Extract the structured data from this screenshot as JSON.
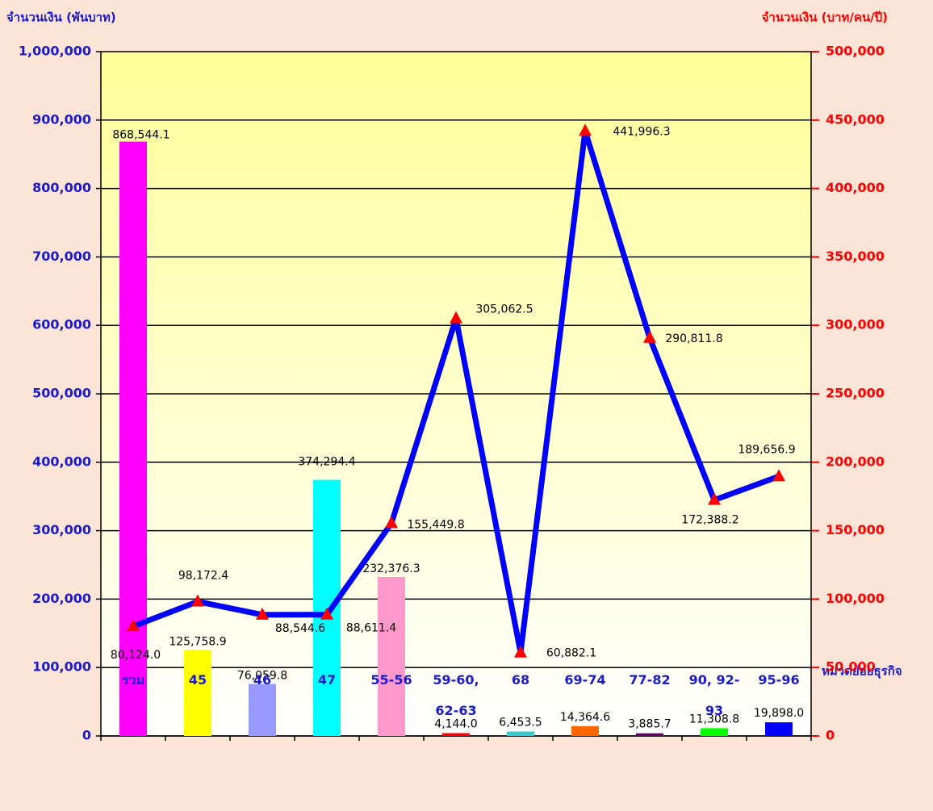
{
  "chart_data": {
    "type": "bar-line",
    "y_label": "จำนวนเงิน (พันบาท)",
    "y2_label": "จำนวนเงิน (บาท/คน/ปี)",
    "x_label": "หมวดย่อยธุรกิจ",
    "categories": [
      "รวม",
      "45",
      "46",
      "47",
      "55-56",
      "59-60, 62-63",
      "68",
      "69-74",
      "77-82",
      "90, 92-93",
      "95-96"
    ],
    "series": [
      {
        "type": "bar",
        "colors": [
          "#ff00ff",
          "#ffff00",
          "#9999ff",
          "#00ffff",
          "#ff99cc",
          "#ff0000",
          "#33cccc",
          "#ff6600",
          "#660066",
          "#00ff00",
          "#0000ff"
        ],
        "values": [
          868544.1,
          125758.9,
          76059.8,
          374294.4,
          232376.3,
          4144.0,
          6453.5,
          14364.6,
          3885.7,
          11308.8,
          19898.0
        ],
        "value_labels": [
          "868,544.1",
          "125,758.9",
          "76,059.8",
          "374,294.4",
          "232,376.3",
          "4,144.0",
          "6,453.5",
          "14,364.6",
          "3,885.7",
          "11,308.8",
          "19,898.0"
        ]
      },
      {
        "type": "line",
        "axis": "y2",
        "color": "#0000ff",
        "marker_color": "#ff0000",
        "values": [
          80124.0,
          98172.4,
          88544.6,
          88611.4,
          155449.8,
          305062.5,
          60882.1,
          441996.3,
          290811.8,
          172388.2,
          189656.9
        ],
        "value_labels": [
          "80,124.0",
          "98,172.4",
          "88,544.6",
          "88,611.4",
          "155,449.8",
          "305,062.5",
          "60,882.1",
          "441,996.3",
          "290,811.8",
          "172,388.2",
          "189,656.9"
        ]
      }
    ],
    "ylim": [
      0,
      1000000
    ],
    "yticks": [
      0,
      {
        "value": 100000,
        "label": "100,000"
      },
      {
        "value": 200000,
        "label": "200,000"
      },
      {
        "value": 300000,
        "label": "300,000"
      },
      {
        "value": 400000,
        "label": "400,000"
      },
      {
        "value": 500000,
        "label": "500,000"
      },
      {
        "value": 600000,
        "label": "600,000"
      },
      {
        "value": 700000,
        "label": "700,000"
      },
      {
        "value": 800000,
        "label": "800,000"
      },
      {
        "value": 900000,
        "label": "900,000"
      },
      {
        "value": 1000000,
        "label": "1,000,000"
      }
    ],
    "y2lim": [
      0,
      500000
    ],
    "y2ticks": [
      0,
      {
        "value": 50000,
        "label": "50,000"
      },
      {
        "value": 100000,
        "label": "100,000"
      },
      {
        "value": 150000,
        "label": "150,000"
      },
      {
        "value": 200000,
        "label": "200,000"
      },
      {
        "value": 250000,
        "label": "250,000"
      },
      {
        "value": 300000,
        "label": "300,000"
      },
      {
        "value": 350000,
        "label": "350,000"
      },
      {
        "value": 400000,
        "label": "400,000"
      },
      {
        "value": 450000,
        "label": "450,000"
      },
      {
        "value": 500000,
        "label": "500,000"
      }
    ],
    "grid": true
  }
}
